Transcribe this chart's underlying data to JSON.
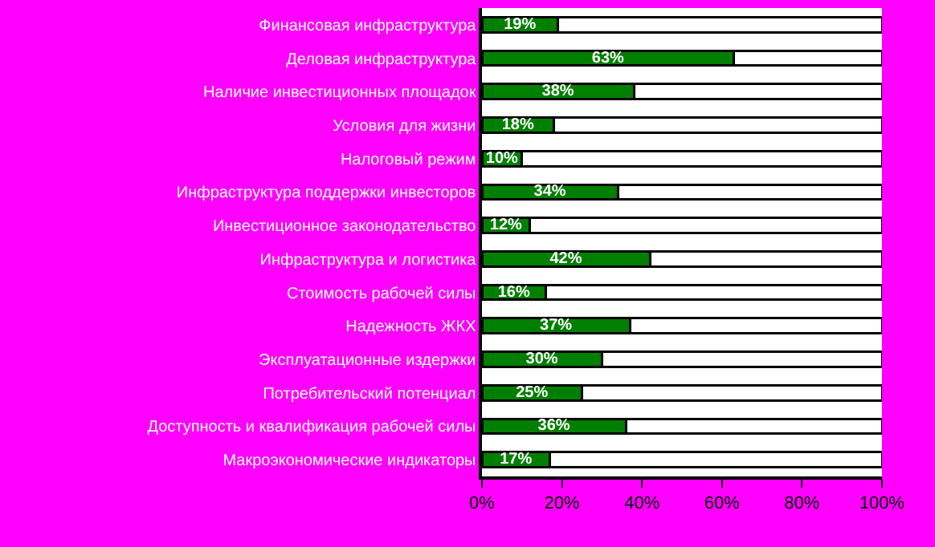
{
  "chart_data": {
    "type": "bar",
    "orientation": "horizontal",
    "stacked": true,
    "categories": [
      "Финансовая инфраструктура",
      "Деловая инфраструктура",
      "Наличие инвестиционных площадок",
      "Условия для жизни",
      "Налоговый режим",
      "Инфраструктура поддержки инвесторов",
      "Инвестиционное законодательство",
      "Инфраструктура и логистика",
      "Стоимость рабочей силы",
      "Надежность ЖКХ",
      "Эксплуатационные издержки",
      "Потребительский потенциал",
      "Доступность и квалификация рабочей силы",
      "Макроэкономические индикаторы"
    ],
    "series": [
      {
        "color": "#007f00",
        "values": [
          19,
          63,
          38,
          18,
          10,
          34,
          12,
          42,
          16,
          37,
          30,
          25,
          36,
          17
        ],
        "value_labels": [
          "19%",
          "63%",
          "38%",
          "18%",
          "10%",
          "34%",
          "12%",
          "42%",
          "16%",
          "37%",
          "30%",
          "25%",
          "36%",
          "17%"
        ]
      },
      {
        "color": "#ffffff",
        "values": [
          81,
          37,
          62,
          82,
          90,
          66,
          88,
          58,
          84,
          63,
          70,
          75,
          64,
          83
        ]
      }
    ],
    "xlim": [
      0,
      100
    ],
    "xticks": [
      {
        "value": 0,
        "label": "0%"
      },
      {
        "value": 20,
        "label": "20%"
      },
      {
        "value": 40,
        "label": "40%"
      },
      {
        "value": 60,
        "label": "60%"
      },
      {
        "value": 80,
        "label": "80%"
      },
      {
        "value": 100,
        "label": "100%"
      }
    ],
    "grid": false
  }
}
